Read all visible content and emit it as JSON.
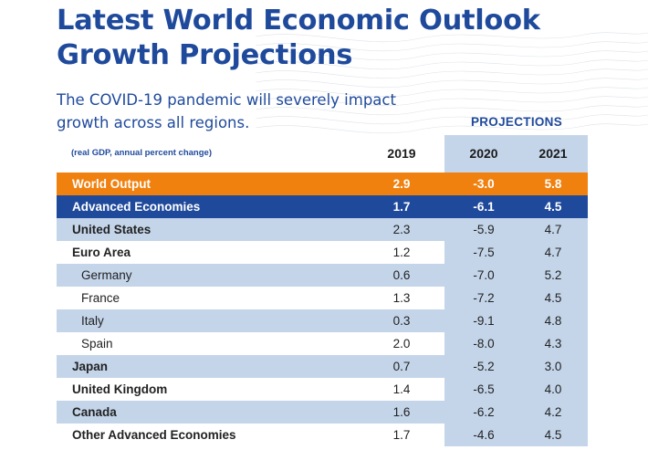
{
  "header": {
    "title_line1": "Latest World Economic Outlook",
    "title_line2": "Growth Projections",
    "subtitle_line1": "The COVID-19 pandemic will severely impact",
    "subtitle_line2": "growth across all regions.",
    "projections_label": "PROJECTIONS",
    "unit_note": "(real GDP, annual percent change)"
  },
  "colors": {
    "title_blue": "#1f4a9c",
    "world_output_orange": "#f0810f",
    "advanced_blue": "#1f4a9c",
    "row_shade": "#c4d5ea"
  },
  "chart_data": {
    "type": "table",
    "title": "Latest World Economic Outlook Growth Projections",
    "subtitle": "The COVID-19 pandemic will severely impact growth across all regions.",
    "unit": "(real GDP, annual percent change)",
    "column_group": "PROJECTIONS",
    "columns": [
      "2019",
      "2020",
      "2021"
    ],
    "rows": [
      {
        "name": "World Output",
        "values": [
          "2.9",
          "-3.0",
          "5.8"
        ]
      },
      {
        "name": "Advanced Economies",
        "values": [
          "1.7",
          "-6.1",
          "4.5"
        ]
      },
      {
        "name": "United States",
        "values": [
          "2.3",
          "-5.9",
          "4.7"
        ]
      },
      {
        "name": "Euro Area",
        "values": [
          "1.2",
          "-7.5",
          "4.7"
        ]
      },
      {
        "name": "Germany",
        "values": [
          "0.6",
          "-7.0",
          "5.2"
        ]
      },
      {
        "name": "France",
        "values": [
          "1.3",
          "-7.2",
          "4.5"
        ]
      },
      {
        "name": "Italy",
        "values": [
          "0.3",
          "-9.1",
          "4.8"
        ]
      },
      {
        "name": "Spain",
        "values": [
          "2.0",
          "-8.0",
          "4.3"
        ]
      },
      {
        "name": "Japan",
        "values": [
          "0.7",
          "-5.2",
          "3.0"
        ]
      },
      {
        "name": "United Kingdom",
        "values": [
          "1.4",
          "-6.5",
          "4.0"
        ]
      },
      {
        "name": "Canada",
        "values": [
          "1.6",
          "-6.2",
          "4.2"
        ]
      },
      {
        "name": "Other Advanced Economies",
        "values": [
          "1.7",
          "-4.6",
          "4.5"
        ]
      }
    ]
  }
}
